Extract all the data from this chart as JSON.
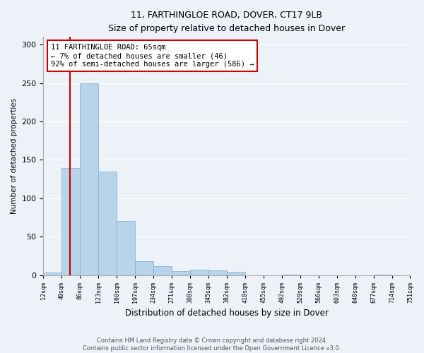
{
  "title_line1": "11, FARTHINGLOE ROAD, DOVER, CT17 9LB",
  "title_line2": "Size of property relative to detached houses in Dover",
  "xlabel": "Distribution of detached houses by size in Dover",
  "ylabel": "Number of detached properties",
  "bar_color": "#b8d4ea",
  "bar_edge_color": "#7aafd4",
  "annotation_box_color": "#cc0000",
  "annotation_line_color": "#cc0000",
  "property_line_x": 65,
  "annotation_text_line1": "11 FARTHINGLOE ROAD: 65sqm",
  "annotation_text_line2": "← 7% of detached houses are smaller (46)",
  "annotation_text_line3": "92% of semi-detached houses are larger (586) →",
  "bins": [
    12,
    49,
    86,
    123,
    160,
    197,
    234,
    271,
    308,
    345,
    382,
    418,
    455,
    492,
    529,
    566,
    603,
    640,
    677,
    714,
    751
  ],
  "counts": [
    3,
    139,
    250,
    135,
    70,
    18,
    12,
    5,
    7,
    6,
    4,
    0,
    0,
    1,
    0,
    0,
    0,
    0,
    1,
    0
  ],
  "footer_line1": "Contains HM Land Registry data © Crown copyright and database right 2024.",
  "footer_line2": "Contains public sector information licensed under the Open Government Licence v3.0.",
  "background_color": "#edf2f9",
  "plot_background": "#edf2f9",
  "grid_color": "#ffffff",
  "ylim": [
    0,
    310
  ],
  "yticks": [
    0,
    50,
    100,
    150,
    200,
    250,
    300
  ]
}
